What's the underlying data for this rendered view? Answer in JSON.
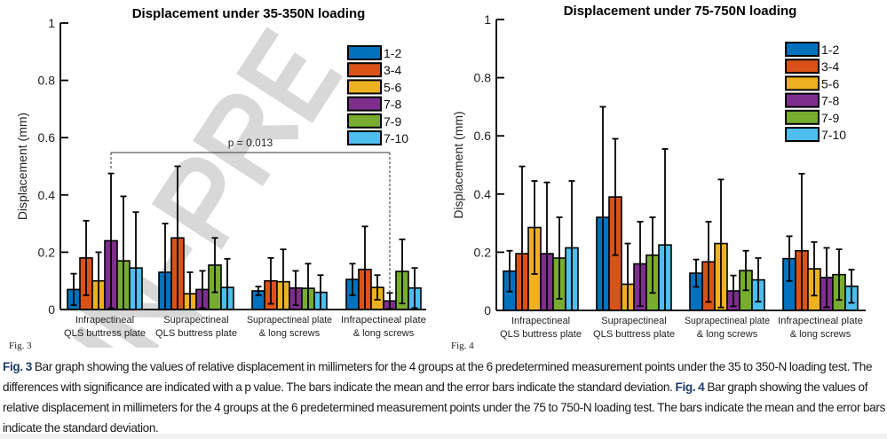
{
  "watermark": "IN-PRE",
  "figure_labels": [
    "Fig. 3",
    "Fig. 4"
  ],
  "caption": {
    "fig3_label": "Fig. 3",
    "fig3_text": " Bar graph showing the values of relative displacement in millimeters for the 4 groups at the 6 predetermined measurement points under the 35 to 350-N loading test. The differences with significance are indicated with a p value. The bars indicate the mean and the error bars indicate the standard deviation. ",
    "fig4_label": "Fig. 4",
    "fig4_text": " Bar graph showing the values of relative displacement in millimeters for the 4 groups at the 6 predetermined measurement points under the 75 to 750-N loading test. The bars indicate the mean and the error bars indicate the standard deviation."
  },
  "chart_data": [
    {
      "type": "bar",
      "title": "Displacement under 35-350N loading",
      "xlabel": "",
      "ylabel": "Displacement (mm)",
      "ylim": [
        0,
        1
      ],
      "yticks": [
        "0",
        "0.2",
        "0.4",
        "0.6",
        "0.8",
        "1"
      ],
      "grid": false,
      "legend": "top-right",
      "categories": [
        [
          "Infrapectineal",
          "QLS buttress plate"
        ],
        [
          "Suprapectineal",
          "QLS buttress plate"
        ],
        [
          "Suprapectineal plate",
          "& long screws"
        ],
        [
          "Infrapectineal plate",
          "& long screws"
        ]
      ],
      "series": [
        {
          "name": "1-2",
          "color": "#0072BD",
          "values": [
            0.07,
            0.13,
            0.065,
            0.105
          ],
          "sd": [
            0.055,
            0.17,
            0.015,
            0.055
          ]
        },
        {
          "name": "3-4",
          "color": "#D95319",
          "values": [
            0.18,
            0.25,
            0.1,
            0.14
          ],
          "sd": [
            0.13,
            0.25,
            0.08,
            0.15
          ]
        },
        {
          "name": "5-6",
          "color": "#EDB120",
          "values": [
            0.1,
            0.055,
            0.097,
            0.077
          ],
          "sd": [
            0.1,
            0.075,
            0.113,
            0.043
          ]
        },
        {
          "name": "7-8",
          "color": "#7E2F8E",
          "values": [
            0.24,
            0.07,
            0.075,
            0.03
          ],
          "sd": [
            0.235,
            0.065,
            0.06,
            0.028
          ]
        },
        {
          "name": "7-9",
          "color": "#77AC30",
          "values": [
            0.17,
            0.155,
            0.074,
            0.133
          ],
          "sd": [
            0.225,
            0.095,
            0.086,
            0.112
          ]
        },
        {
          "name": "7-10",
          "color": "#4DBEEE",
          "values": [
            0.145,
            0.077,
            0.06,
            0.075
          ],
          "sd": [
            0.195,
            0.1,
            0.06,
            0.07
          ]
        }
      ],
      "annotation": {
        "text": "p = 0.013",
        "from": {
          "category": 0,
          "series": "7-8"
        },
        "to": {
          "category": 3,
          "series": "7-8"
        }
      }
    },
    {
      "type": "bar",
      "title": "Displacement under 75-750N loading",
      "xlabel": "",
      "ylabel": "Displacement (mm)",
      "ylim": [
        0,
        1
      ],
      "yticks": [
        "0",
        "0.2",
        "0.4",
        "0.6",
        "0.8",
        "1"
      ],
      "grid": false,
      "legend": "top-right",
      "categories": [
        [
          "Infrapectineal",
          "QLS buttress plate"
        ],
        [
          "Suprapectineal",
          "QLS buttress plate"
        ],
        [
          "Suprapectineal plate",
          "& long screws"
        ],
        [
          "Infrapectineal plate",
          "& long screws"
        ]
      ],
      "series": [
        {
          "name": "1-2",
          "color": "#0072BD",
          "values": [
            0.135,
            0.32,
            0.128,
            0.178
          ],
          "sd": [
            0.07,
            0.38,
            0.047,
            0.077
          ]
        },
        {
          "name": "3-4",
          "color": "#D95319",
          "values": [
            0.195,
            0.39,
            0.167,
            0.205
          ],
          "sd": [
            0.3,
            0.2,
            0.138,
            0.265
          ]
        },
        {
          "name": "5-6",
          "color": "#EDB120",
          "values": [
            0.285,
            0.09,
            0.23,
            0.143
          ],
          "sd": [
            0.16,
            0.14,
            0.22,
            0.092
          ]
        },
        {
          "name": "7-8",
          "color": "#7E2F8E",
          "values": [
            0.195,
            0.16,
            0.067,
            0.113
          ],
          "sd": [
            0.245,
            0.145,
            0.053,
            0.102
          ]
        },
        {
          "name": "7-9",
          "color": "#77AC30",
          "values": [
            0.18,
            0.19,
            0.137,
            0.123
          ],
          "sd": [
            0.14,
            0.13,
            0.068,
            0.087
          ]
        },
        {
          "name": "7-10",
          "color": "#4DBEEE",
          "values": [
            0.215,
            0.225,
            0.105,
            0.083
          ],
          "sd": [
            0.23,
            0.33,
            0.075,
            0.057
          ]
        }
      ]
    }
  ]
}
